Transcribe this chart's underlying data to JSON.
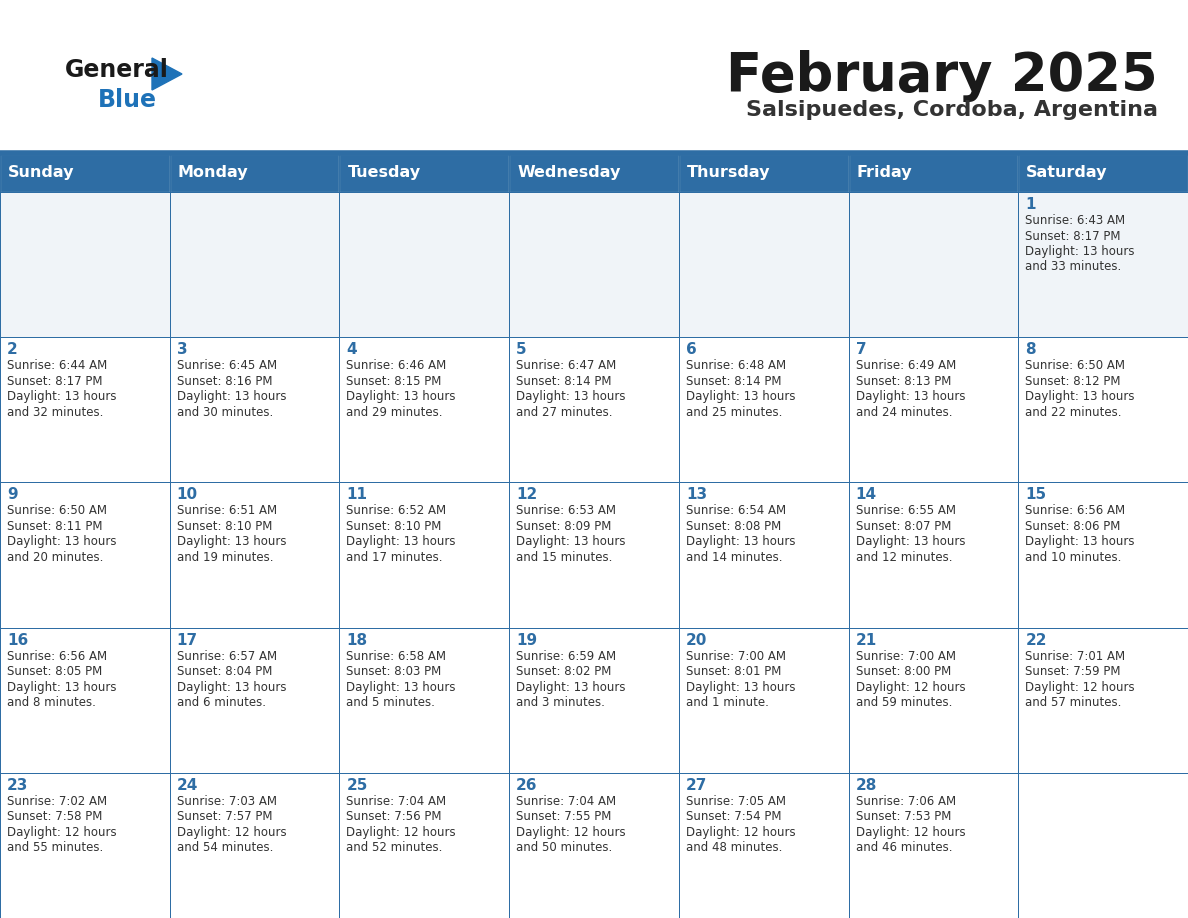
{
  "title": "February 2025",
  "subtitle": "Salsipuedes, Cordoba, Argentina",
  "days_of_week": [
    "Sunday",
    "Monday",
    "Tuesday",
    "Wednesday",
    "Thursday",
    "Friday",
    "Saturday"
  ],
  "header_bg": "#2e6da4",
  "header_text": "#ffffff",
  "cell_bg_light": "#f0f4f8",
  "cell_bg_white": "#ffffff",
  "cell_border": "#2e6da4",
  "day_num_color": "#2e6da4",
  "info_text_color": "#333333",
  "title_color": "#1a1a1a",
  "subtitle_color": "#333333",
  "logo_general_color": "#1a1a1a",
  "logo_blue_color": "#1e72b8",
  "line_color": "#2e6da4",
  "weeks": [
    [
      {
        "day": null,
        "info": ""
      },
      {
        "day": null,
        "info": ""
      },
      {
        "day": null,
        "info": ""
      },
      {
        "day": null,
        "info": ""
      },
      {
        "day": null,
        "info": ""
      },
      {
        "day": null,
        "info": ""
      },
      {
        "day": 1,
        "info": "Sunrise: 6:43 AM\nSunset: 8:17 PM\nDaylight: 13 hours\nand 33 minutes."
      }
    ],
    [
      {
        "day": 2,
        "info": "Sunrise: 6:44 AM\nSunset: 8:17 PM\nDaylight: 13 hours\nand 32 minutes."
      },
      {
        "day": 3,
        "info": "Sunrise: 6:45 AM\nSunset: 8:16 PM\nDaylight: 13 hours\nand 30 minutes."
      },
      {
        "day": 4,
        "info": "Sunrise: 6:46 AM\nSunset: 8:15 PM\nDaylight: 13 hours\nand 29 minutes."
      },
      {
        "day": 5,
        "info": "Sunrise: 6:47 AM\nSunset: 8:14 PM\nDaylight: 13 hours\nand 27 minutes."
      },
      {
        "day": 6,
        "info": "Sunrise: 6:48 AM\nSunset: 8:14 PM\nDaylight: 13 hours\nand 25 minutes."
      },
      {
        "day": 7,
        "info": "Sunrise: 6:49 AM\nSunset: 8:13 PM\nDaylight: 13 hours\nand 24 minutes."
      },
      {
        "day": 8,
        "info": "Sunrise: 6:50 AM\nSunset: 8:12 PM\nDaylight: 13 hours\nand 22 minutes."
      }
    ],
    [
      {
        "day": 9,
        "info": "Sunrise: 6:50 AM\nSunset: 8:11 PM\nDaylight: 13 hours\nand 20 minutes."
      },
      {
        "day": 10,
        "info": "Sunrise: 6:51 AM\nSunset: 8:10 PM\nDaylight: 13 hours\nand 19 minutes."
      },
      {
        "day": 11,
        "info": "Sunrise: 6:52 AM\nSunset: 8:10 PM\nDaylight: 13 hours\nand 17 minutes."
      },
      {
        "day": 12,
        "info": "Sunrise: 6:53 AM\nSunset: 8:09 PM\nDaylight: 13 hours\nand 15 minutes."
      },
      {
        "day": 13,
        "info": "Sunrise: 6:54 AM\nSunset: 8:08 PM\nDaylight: 13 hours\nand 14 minutes."
      },
      {
        "day": 14,
        "info": "Sunrise: 6:55 AM\nSunset: 8:07 PM\nDaylight: 13 hours\nand 12 minutes."
      },
      {
        "day": 15,
        "info": "Sunrise: 6:56 AM\nSunset: 8:06 PM\nDaylight: 13 hours\nand 10 minutes."
      }
    ],
    [
      {
        "day": 16,
        "info": "Sunrise: 6:56 AM\nSunset: 8:05 PM\nDaylight: 13 hours\nand 8 minutes."
      },
      {
        "day": 17,
        "info": "Sunrise: 6:57 AM\nSunset: 8:04 PM\nDaylight: 13 hours\nand 6 minutes."
      },
      {
        "day": 18,
        "info": "Sunrise: 6:58 AM\nSunset: 8:03 PM\nDaylight: 13 hours\nand 5 minutes."
      },
      {
        "day": 19,
        "info": "Sunrise: 6:59 AM\nSunset: 8:02 PM\nDaylight: 13 hours\nand 3 minutes."
      },
      {
        "day": 20,
        "info": "Sunrise: 7:00 AM\nSunset: 8:01 PM\nDaylight: 13 hours\nand 1 minute."
      },
      {
        "day": 21,
        "info": "Sunrise: 7:00 AM\nSunset: 8:00 PM\nDaylight: 12 hours\nand 59 minutes."
      },
      {
        "day": 22,
        "info": "Sunrise: 7:01 AM\nSunset: 7:59 PM\nDaylight: 12 hours\nand 57 minutes."
      }
    ],
    [
      {
        "day": 23,
        "info": "Sunrise: 7:02 AM\nSunset: 7:58 PM\nDaylight: 12 hours\nand 55 minutes."
      },
      {
        "day": 24,
        "info": "Sunrise: 7:03 AM\nSunset: 7:57 PM\nDaylight: 12 hours\nand 54 minutes."
      },
      {
        "day": 25,
        "info": "Sunrise: 7:04 AM\nSunset: 7:56 PM\nDaylight: 12 hours\nand 52 minutes."
      },
      {
        "day": 26,
        "info": "Sunrise: 7:04 AM\nSunset: 7:55 PM\nDaylight: 12 hours\nand 50 minutes."
      },
      {
        "day": 27,
        "info": "Sunrise: 7:05 AM\nSunset: 7:54 PM\nDaylight: 12 hours\nand 48 minutes."
      },
      {
        "day": 28,
        "info": "Sunrise: 7:06 AM\nSunset: 7:53 PM\nDaylight: 12 hours\nand 46 minutes."
      },
      {
        "day": null,
        "info": ""
      }
    ]
  ]
}
